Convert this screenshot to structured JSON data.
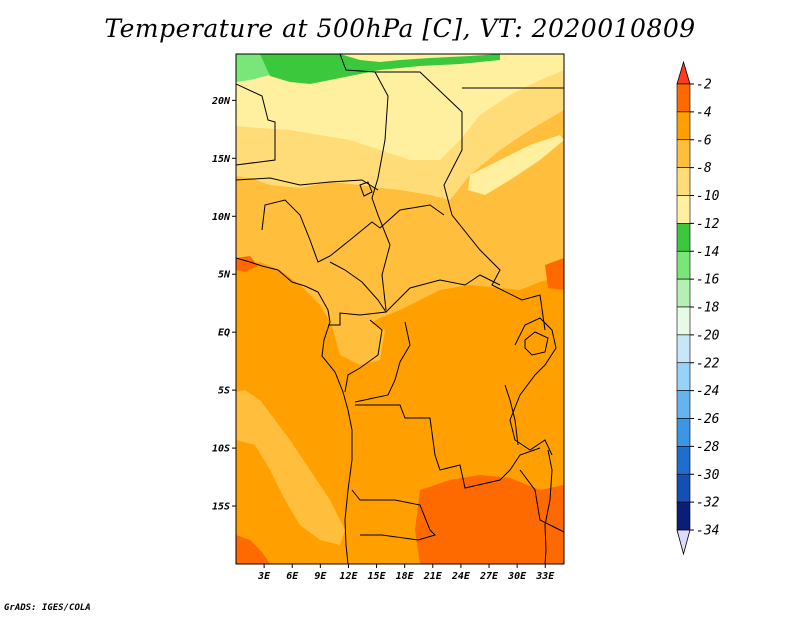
{
  "title": "Temperature at 500hPa [C], VT: 2020010809",
  "credit": "GrADS: IGES/COLA",
  "map": {
    "variable": "Temperature at 500hPa",
    "units": "C",
    "valid_time": "2020010809",
    "lon_range": [
      0,
      35
    ],
    "lat_range": [
      -20,
      24
    ],
    "y_ticks": [
      {
        "label": "20N",
        "lat": 20
      },
      {
        "label": "15N",
        "lat": 15
      },
      {
        "label": "10N",
        "lat": 10
      },
      {
        "label": "5N",
        "lat": 5
      },
      {
        "label": "EQ",
        "lat": 0
      },
      {
        "label": "5S",
        "lat": -5
      },
      {
        "label": "10S",
        "lat": -10
      },
      {
        "label": "15S",
        "lat": -15
      }
    ],
    "x_ticks": [
      {
        "label": "3E",
        "lon": 3
      },
      {
        "label": "6E",
        "lon": 6
      },
      {
        "label": "9E",
        "lon": 9
      },
      {
        "label": "12E",
        "lon": 12
      },
      {
        "label": "15E",
        "lon": 15
      },
      {
        "label": "18E",
        "lon": 18
      },
      {
        "label": "21E",
        "lon": 21
      },
      {
        "label": "24E",
        "lon": 24
      },
      {
        "label": "27E",
        "lon": 27
      },
      {
        "label": "30E",
        "lon": 30
      },
      {
        "label": "33E",
        "lon": 33
      }
    ]
  },
  "colorbar": {
    "labels": [
      "-2",
      "-4",
      "-6",
      "-8",
      "-10",
      "-12",
      "-14",
      "-16",
      "-18",
      "-20",
      "-22",
      "-24",
      "-26",
      "-28",
      "-30",
      "-32",
      "-34"
    ],
    "colors": [
      "#ff3c1e",
      "#ff6a00",
      "#ffa000",
      "#ffbe3c",
      "#ffdc78",
      "#fff0a0",
      "#3cc83c",
      "#78e678",
      "#b4f0b4",
      "#e6fae6",
      "#c8e6fa",
      "#96d2fa",
      "#64b4f0",
      "#3c96e6",
      "#1e6ed2",
      "#1450b4",
      "#0a1e78",
      "#dcdcfa"
    ],
    "top_arrow_color": "#ff3c1e",
    "bottom_arrow_color": "#dcdcfa"
  }
}
